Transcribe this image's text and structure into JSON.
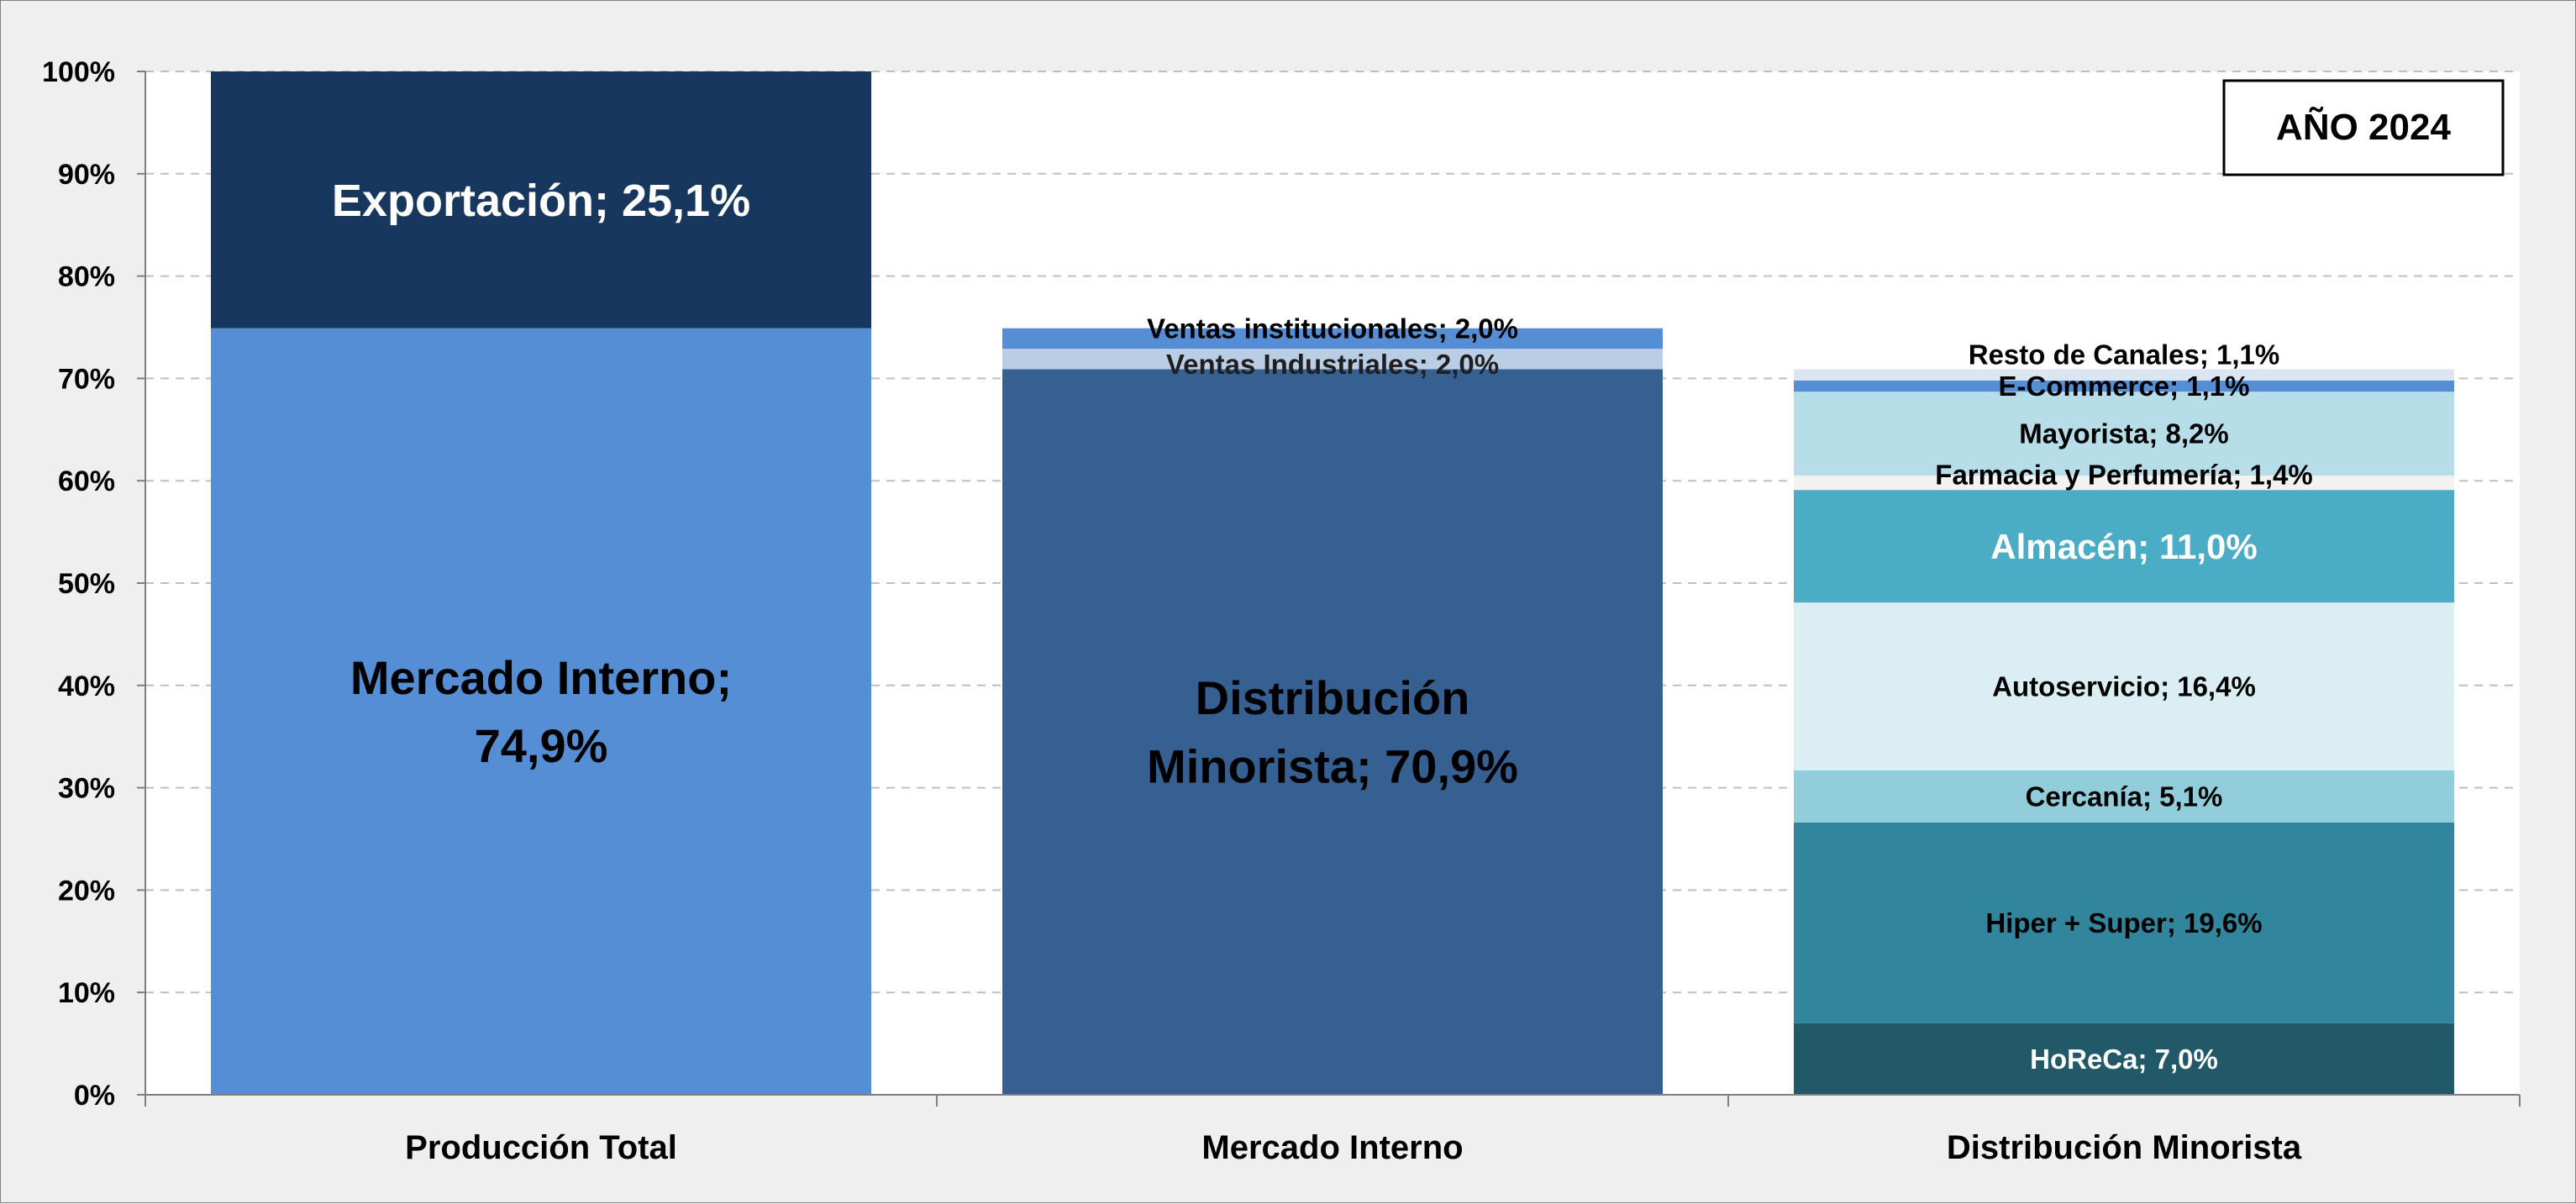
{
  "chart_data": {
    "type": "bar",
    "stacked": true,
    "annotation": "AÑO 2024",
    "categories": [
      "Producción Total",
      "Mercado Interno",
      "Distribución Minorista"
    ],
    "ylim": [
      0,
      100
    ],
    "yticks": [
      "0%",
      "10%",
      "20%",
      "30%",
      "40%",
      "50%",
      "60%",
      "70%",
      "80%",
      "90%",
      "100%"
    ],
    "grid": "horizontal-dashed",
    "legend": "none",
    "stacks": [
      {
        "category": "Producción Total",
        "segments": [
          {
            "name": "Mercado Interno",
            "value": 74.9,
            "label": [
              "Mercado Interno;",
              "74,9%"
            ],
            "color": "#558ed5",
            "text_color": "#000000",
            "label_size": "xl"
          },
          {
            "name": "Exportación",
            "value": 25.1,
            "label": [
              "Exportación;  25,1%"
            ],
            "color": "#17375e",
            "text_color": "#ffffff",
            "label_size": "lg"
          }
        ]
      },
      {
        "category": "Mercado Interno",
        "segments": [
          {
            "name": "Distribución Minorista",
            "value": 70.9,
            "label": [
              "Distribución",
              "Minorista;  70,9%"
            ],
            "color": "#366092",
            "text_color": "#000000",
            "label_size": "xl"
          },
          {
            "name": "Ventas Industriales",
            "value": 2.0,
            "label": [
              "Ventas Industriales;  2,0%"
            ],
            "color": "#b9cde5",
            "text_color": "#1f1f1f",
            "label_size": "sm",
            "label_dy": -0.5
          },
          {
            "name": "Ventas institucionales",
            "value": 2.0,
            "label": [
              "Ventas institucionales;  2,0%"
            ],
            "color": "#558ed5",
            "text_color": "#000000",
            "label_size": "sm",
            "label_dy": 1.0
          }
        ]
      },
      {
        "category": "Distribución Minorista",
        "segments": [
          {
            "name": "HoReCa",
            "value": 7.0,
            "label": [
              "HoReCa;  7,0%"
            ],
            "color": "#215968",
            "text_color": "#ffffff",
            "label_size": "sm"
          },
          {
            "name": "Hiper + Super",
            "value": 19.6,
            "label": [
              "Hiper + Super; 19,6%"
            ],
            "color": "#31859c",
            "text_color": "#000000",
            "label_size": "sm"
          },
          {
            "name": "Cercanía",
            "value": 5.1,
            "label": [
              "Cercanía;  5,1%"
            ],
            "color": "#92cddc",
            "text_color": "#000000",
            "label_size": "sm"
          },
          {
            "name": "Autoservicio",
            "value": 16.4,
            "label": [
              "Autoservicio;  16,4%"
            ],
            "color": "#daeef3",
            "text_color": "#000000",
            "label_size": "sm"
          },
          {
            "name": "Almacén",
            "value": 11.0,
            "label": [
              "Almacén; 11,0%"
            ],
            "color": "#4bacc6",
            "text_color": "#ffffff",
            "label_size": "md",
            "label_weight": "normal"
          },
          {
            "name": "Farmacia y Perfumería",
            "value": 1.4,
            "label": [
              "Farmacia  y  Perfumería; 1,4%"
            ],
            "color": "#f2f2f2",
            "text_color": "#000000",
            "label_size": "sm",
            "label_dy": 0.8
          },
          {
            "name": "Mayorista",
            "value": 8.2,
            "label": [
              "Mayorista;  8,2%"
            ],
            "color": "#b7dee8",
            "text_color": "#000000",
            "label_size": "sm"
          },
          {
            "name": "E-Commerce",
            "value": 1.1,
            "label": [
              "E-Commerce; 1,1%"
            ],
            "color": "#558ed5",
            "text_color": "#000000",
            "label_size": "sm"
          },
          {
            "name": "Resto de Canales",
            "value": 1.1,
            "label": [
              "Resto de Canales;  1,1%"
            ],
            "color": "#dce6f2",
            "text_color": "#000000",
            "label_size": "sm",
            "label_dy": 2.0
          }
        ]
      }
    ]
  }
}
